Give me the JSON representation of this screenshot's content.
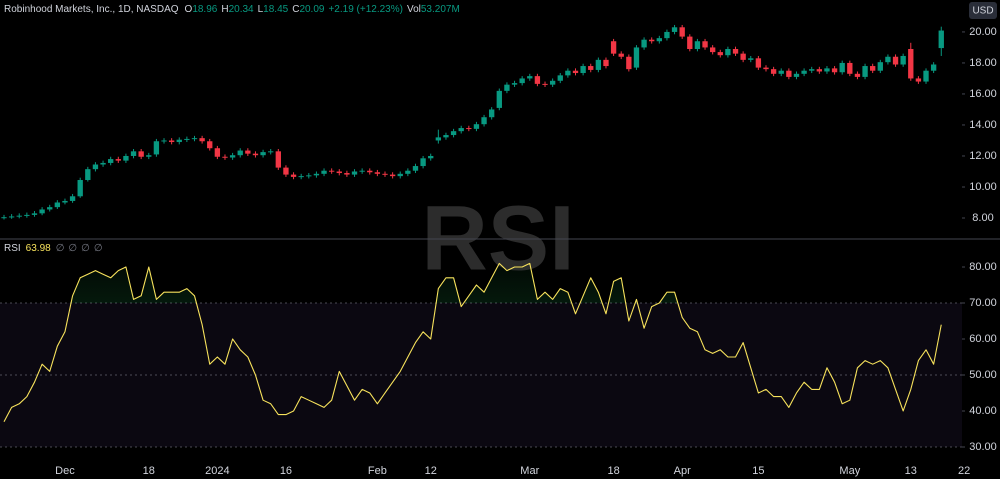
{
  "chart_data": [
    {
      "type": "candlestick",
      "title": "Robinhood Markets, Inc., 1D, NASDAQ",
      "header_labels": [
        "O",
        "H",
        "L",
        "C"
      ],
      "change": "+2.19 (+12.23%)",
      "volume_label": "Vol",
      "volume": "53.207M",
      "currency": "USD",
      "up_color": "#089981",
      "down_color": "#f23645",
      "categories": [
        null,
        null,
        null,
        null,
        null,
        null,
        null,
        null,
        "Dec",
        null,
        null,
        null,
        null,
        null,
        null,
        null,
        null,
        null,
        null,
        "18",
        null,
        null,
        null,
        null,
        null,
        null,
        null,
        null,
        "2024",
        null,
        null,
        null,
        null,
        null,
        null,
        null,
        null,
        "16",
        null,
        null,
        null,
        null,
        null,
        null,
        null,
        null,
        null,
        null,
        null,
        "Feb",
        null,
        null,
        null,
        null,
        null,
        null,
        "12",
        null,
        null,
        null,
        null,
        null,
        null,
        null,
        null,
        null,
        null,
        null,
        null,
        "Mar",
        null,
        null,
        null,
        null,
        null,
        null,
        null,
        null,
        null,
        null,
        "18",
        null,
        null,
        null,
        null,
        null,
        null,
        null,
        null,
        "Apr",
        null,
        null,
        null,
        null,
        null,
        null,
        null,
        null,
        null,
        "15",
        null,
        null,
        null,
        null,
        null,
        null,
        null,
        null,
        null,
        null,
        null,
        "May",
        null,
        null,
        null,
        null,
        null,
        null,
        null,
        "13",
        null,
        null,
        null,
        null,
        null,
        null,
        "22"
      ],
      "open": [
        8.0,
        8.05,
        8.1,
        8.15,
        8.2,
        8.3,
        8.55,
        8.7,
        9.0,
        9.1,
        9.4,
        10.45,
        11.15,
        11.45,
        11.55,
        11.8,
        11.7,
        12.0,
        12.3,
        11.95,
        12.1,
        12.95,
        13.0,
        12.9,
        13.05,
        13.1,
        13.15,
        12.95,
        12.5,
        11.95,
        11.9,
        12.05,
        12.35,
        12.15,
        12.05,
        12.25,
        12.3,
        11.25,
        10.8,
        10.65,
        10.7,
        10.75,
        10.85,
        11.05,
        11.0,
        10.9,
        10.8,
        11.0,
        11.05,
        10.95,
        10.85,
        10.8,
        10.7,
        10.85,
        11.05,
        11.35,
        11.85,
        13.0,
        13.2,
        13.35,
        13.6,
        13.8,
        13.75,
        14.05,
        14.5,
        15.1,
        16.2,
        16.6,
        16.7,
        17.0,
        17.15,
        16.65,
        16.6,
        16.85,
        17.2,
        17.5,
        17.35,
        17.8,
        17.55,
        18.2,
        19.4,
        18.6,
        18.4,
        17.7,
        19.0,
        19.5,
        19.4,
        19.6,
        20.0,
        20.3,
        19.7,
        18.9,
        19.4,
        19.0,
        18.7,
        18.5,
        18.9,
        18.6,
        18.2,
        18.3,
        17.7,
        17.6,
        17.3,
        17.5,
        17.1,
        17.3,
        17.5,
        17.6,
        17.45,
        17.65,
        17.4,
        18.0,
        17.3,
        17.1,
        17.8,
        17.5,
        18.05,
        18.4,
        17.9,
        18.9,
        17.0,
        16.8,
        17.5,
        18.96,
        null,
        null,
        null
      ],
      "high": [
        8.2,
        8.25,
        8.3,
        8.35,
        8.45,
        8.7,
        8.85,
        9.15,
        9.25,
        9.55,
        10.6,
        11.3,
        11.6,
        11.7,
        11.95,
        11.95,
        12.15,
        12.45,
        12.45,
        12.2,
        13.1,
        13.15,
        13.15,
        13.2,
        13.25,
        13.3,
        13.3,
        13.1,
        12.65,
        12.1,
        12.2,
        12.5,
        12.5,
        12.3,
        12.4,
        12.45,
        12.45,
        11.4,
        10.95,
        10.85,
        10.9,
        11.0,
        11.2,
        11.2,
        11.15,
        11.05,
        11.15,
        11.2,
        11.2,
        11.1,
        11.0,
        10.95,
        11.0,
        11.2,
        11.5,
        12.0,
        12.15,
        13.7,
        13.5,
        13.75,
        13.95,
        13.95,
        14.2,
        14.65,
        15.15,
        16.35,
        16.75,
        16.85,
        17.15,
        17.3,
        17.3,
        16.8,
        17.0,
        17.35,
        17.65,
        17.65,
        17.95,
        17.95,
        18.35,
        18.35,
        19.55,
        18.75,
        18.55,
        19.15,
        19.65,
        19.65,
        19.75,
        20.15,
        20.45,
        20.45,
        19.85,
        19.55,
        19.55,
        19.15,
        18.85,
        19.05,
        19.05,
        18.75,
        18.45,
        18.45,
        17.85,
        17.75,
        17.65,
        17.65,
        17.45,
        17.65,
        17.75,
        17.75,
        17.8,
        17.8,
        18.15,
        18.15,
        17.45,
        17.95,
        17.95,
        18.2,
        18.55,
        18.55,
        18.6,
        19.3,
        17.15,
        17.65,
        18.05,
        20.34,
        null,
        null,
        null
      ],
      "low": [
        7.9,
        7.95,
        7.98,
        8.02,
        8.08,
        8.18,
        8.42,
        8.58,
        8.88,
        8.98,
        9.3,
        10.35,
        11.0,
        11.3,
        11.4,
        11.55,
        11.55,
        11.85,
        11.8,
        11.8,
        11.95,
        12.8,
        12.75,
        12.75,
        12.9,
        12.95,
        12.8,
        12.35,
        11.8,
        11.75,
        11.75,
        11.9,
        12.0,
        11.9,
        11.9,
        12.1,
        11.1,
        10.65,
        10.5,
        10.5,
        10.55,
        10.6,
        10.7,
        10.85,
        10.75,
        10.65,
        10.65,
        10.85,
        10.8,
        10.7,
        10.65,
        10.55,
        10.55,
        10.7,
        10.9,
        11.2,
        11.7,
        12.8,
        13.05,
        13.2,
        13.45,
        13.6,
        13.6,
        13.9,
        14.35,
        14.95,
        16.05,
        16.45,
        16.55,
        16.85,
        16.5,
        16.45,
        16.45,
        16.7,
        17.05,
        17.2,
        17.2,
        17.4,
        17.4,
        17.65,
        18.45,
        18.25,
        17.45,
        17.55,
        18.85,
        19.25,
        19.25,
        19.45,
        19.85,
        19.55,
        18.75,
        18.75,
        18.85,
        18.55,
        18.35,
        18.35,
        18.45,
        18.05,
        18.05,
        17.55,
        17.45,
        17.15,
        17.15,
        16.95,
        16.95,
        17.15,
        17.35,
        17.3,
        17.3,
        17.25,
        17.25,
        17.15,
        16.95,
        16.95,
        17.35,
        17.35,
        17.9,
        17.75,
        17.75,
        16.85,
        16.65,
        16.65,
        17.35,
        18.45,
        null,
        null,
        null
      ],
      "close": [
        8.05,
        8.1,
        8.15,
        8.2,
        8.3,
        8.55,
        8.7,
        9.0,
        9.1,
        9.4,
        10.45,
        11.15,
        11.45,
        11.55,
        11.8,
        11.7,
        12.0,
        12.3,
        11.95,
        12.05,
        12.95,
        13.0,
        12.9,
        13.05,
        13.1,
        13.15,
        12.95,
        12.5,
        11.95,
        11.9,
        12.05,
        12.35,
        12.15,
        12.05,
        12.25,
        12.3,
        11.25,
        10.8,
        10.65,
        10.7,
        10.75,
        10.85,
        11.05,
        11.0,
        10.9,
        10.8,
        11.0,
        11.05,
        10.95,
        10.85,
        10.8,
        10.7,
        10.85,
        11.05,
        11.35,
        11.85,
        12.0,
        13.2,
        13.35,
        13.6,
        13.8,
        13.75,
        14.05,
        14.5,
        15.0,
        16.2,
        16.6,
        16.7,
        17.0,
        17.15,
        16.65,
        16.6,
        16.85,
        17.2,
        17.5,
        17.35,
        17.8,
        17.55,
        18.2,
        17.8,
        18.6,
        18.4,
        17.6,
        19.0,
        19.5,
        19.4,
        19.6,
        20.0,
        20.3,
        19.7,
        18.9,
        19.4,
        19.0,
        18.7,
        18.5,
        18.9,
        18.6,
        18.2,
        18.3,
        17.7,
        17.6,
        17.3,
        17.5,
        17.1,
        17.3,
        17.5,
        17.6,
        17.45,
        17.65,
        17.4,
        18.0,
        17.3,
        17.1,
        17.8,
        17.5,
        18.05,
        18.4,
        17.9,
        18.45,
        17.0,
        16.8,
        17.5,
        17.9,
        20.09,
        null,
        null,
        null
      ],
      "ylim": [
        6.71,
        22.06
      ],
      "yticks": [
        {
          "value": 8,
          "label": "8.00"
        },
        {
          "value": 10,
          "label": "10.00"
        },
        {
          "value": 12,
          "label": "12.00"
        },
        {
          "value": 14,
          "label": "14.00"
        },
        {
          "value": 16,
          "label": "16.00"
        },
        {
          "value": 18,
          "label": "18.00"
        },
        {
          "value": 20,
          "label": "20.00"
        }
      ]
    },
    {
      "type": "line",
      "title": "RSI",
      "legend_extras": [
        "∅",
        "∅",
        "∅",
        "∅"
      ],
      "color": "#f7e25c",
      "values": [
        37,
        41,
        42,
        44,
        48,
        53,
        51,
        58,
        62,
        72,
        77,
        78,
        79,
        78,
        77,
        79,
        80,
        71,
        72,
        80,
        71,
        73,
        73,
        73,
        74,
        72,
        64,
        53,
        55,
        53,
        60,
        57,
        55,
        50,
        43,
        42,
        39,
        39,
        40,
        44,
        43,
        42,
        41,
        43,
        51,
        47,
        43,
        46,
        45,
        42,
        45,
        48,
        51,
        55,
        59,
        62,
        60,
        74,
        77,
        77,
        69,
        72,
        75,
        73,
        77,
        81,
        79,
        80,
        80,
        81,
        71,
        73,
        71,
        74,
        73,
        67,
        72,
        77,
        73,
        67,
        76,
        77,
        65,
        71,
        63,
        69,
        70,
        73,
        73,
        66,
        63,
        62,
        57,
        56,
        57,
        55,
        55,
        59,
        52,
        45,
        46,
        44,
        44,
        41,
        45,
        48,
        46,
        46,
        52,
        48,
        42,
        43,
        52,
        54,
        53,
        54,
        52,
        46,
        40,
        46,
        54,
        57,
        53,
        63.98,
        null,
        null,
        null
      ],
      "levels": [
        70,
        50,
        30
      ],
      "ylim": [
        25.83,
        87.5
      ],
      "yticks": [
        {
          "value": 30,
          "label": "30.00"
        },
        {
          "value": 40,
          "label": "40.00"
        },
        {
          "value": 50,
          "label": "50.00"
        },
        {
          "value": 60,
          "label": "60.00"
        },
        {
          "value": 70,
          "label": "70.00"
        },
        {
          "value": 80,
          "label": "80.00"
        }
      ]
    }
  ]
}
